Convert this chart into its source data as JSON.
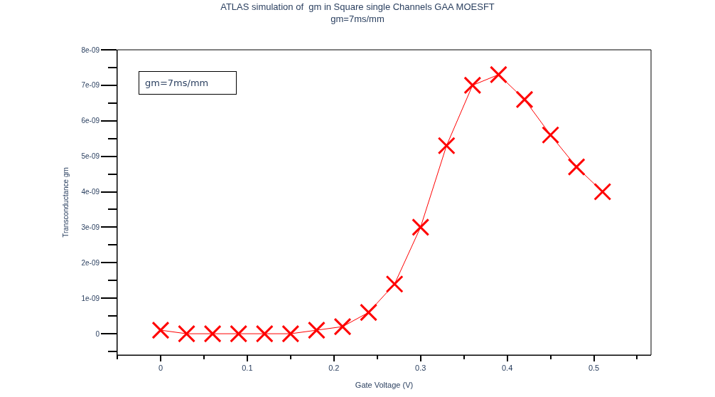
{
  "chart_data": {
    "type": "line",
    "title": "ATLAS simulation of  gm in Square single Channels GAA MOESFT",
    "subtitle": "gm=7ms/mm",
    "xlabel": "Gate Voltage (V)",
    "ylabel": "Transconductance gm",
    "annotations": [
      "gm=7ms/mm"
    ],
    "x": [
      0,
      0.03,
      0.06,
      0.09,
      0.12,
      0.15,
      0.18,
      0.21,
      0.24,
      0.27,
      0.3,
      0.33,
      0.36,
      0.39,
      0.42,
      0.45,
      0.48,
      0.51
    ],
    "series": [
      {
        "color": "#ff0000",
        "values": [
          1e-10,
          0,
          0,
          0,
          0,
          0,
          1e-10,
          2e-10,
          6e-10,
          1.4e-09,
          3e-09,
          5.3e-09,
          7e-09,
          7.3e-09,
          6.6e-09,
          5.6e-09,
          4.7e-09,
          4e-09
        ]
      }
    ],
    "xlim": [
      -0.05,
      0.566
    ],
    "ylim": [
      -6e-10,
      8e-09
    ],
    "xticks": [
      0,
      0.1,
      0.2,
      0.3,
      0.4,
      0.5
    ],
    "yticks": [
      {
        "value": 0,
        "label": "0"
      },
      {
        "value": 1e-09,
        "label": "1e-09"
      },
      {
        "value": 2e-09,
        "label": "2e-09"
      },
      {
        "value": 3e-09,
        "label": "3e-09"
      },
      {
        "value": 4e-09,
        "label": "4e-09"
      },
      {
        "value": 5e-09,
        "label": "5e-09"
      },
      {
        "value": 6e-09,
        "label": "6e-09"
      },
      {
        "value": 7e-09,
        "label": "7e-09"
      },
      {
        "value": 8e-09,
        "label": "8e-09"
      }
    ],
    "marker": "cross",
    "line_style": "solid"
  }
}
